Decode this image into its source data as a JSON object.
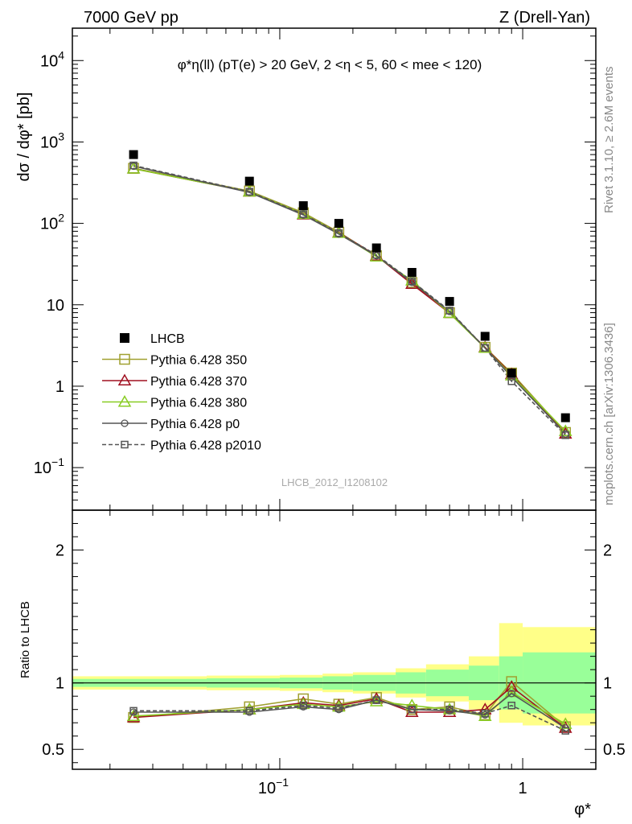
{
  "header": {
    "left": "7000 GeV pp",
    "right": "Z (Drell-Yan)"
  },
  "side_labels": {
    "rivet": "Rivet 3.1.10, ≥ 2.6M events",
    "mcplots": "mcplots.cern.ch [arXiv:1306.3436]"
  },
  "watermark": "LHCB_2012_I1208102",
  "colors": {
    "data": "#000000",
    "p350": "#a0a030",
    "p370": "#a01020",
    "p380": "#88cc22",
    "p0": "#555555",
    "p2010": "#555555",
    "band_inner": "#99ff99",
    "band_outer": "#ffff88"
  },
  "chart_data": [
    {
      "type": "scatter",
      "title": "φ*η(ll) (pT(e) > 20 GeV, 2 <η < 5, 60 < mee < 120)",
      "xlabel": "φ*",
      "ylabel": "dσ / dφ* [pb]",
      "xscale": "log",
      "yscale": "log",
      "xlim": [
        0.014,
        2.0
      ],
      "ylim": [
        0.03,
        25000
      ],
      "grid": false,
      "legend_position": "bottom-left",
      "y_tick_labels": [
        "10^-1",
        "1",
        "10",
        "10^2",
        "10^3",
        "10^4"
      ],
      "x": [
        0.025,
        0.075,
        0.125,
        0.175,
        0.25,
        0.35,
        0.5,
        0.7,
        0.9,
        1.5
      ],
      "series": [
        {
          "name": "LHCB",
          "style": "data",
          "values": [
            700,
            330,
            165,
            100,
            50,
            25,
            11,
            4.1,
            1.45,
            0.41
          ]
        },
        {
          "name": "Pythia 6.428 350",
          "style": "p350",
          "values": [
            475,
            250,
            135,
            78,
            40,
            18.8,
            8.0,
            3.0,
            1.45,
            0.27
          ]
        },
        {
          "name": "Pythia 6.428 370",
          "style": "p370",
          "values": [
            470,
            245,
            128,
            77,
            40,
            18.0,
            7.9,
            3.0,
            1.4,
            0.26
          ]
        },
        {
          "name": "Pythia 6.428 380",
          "style": "p380",
          "values": [
            470,
            245,
            130,
            76,
            39,
            19.8,
            7.9,
            2.95,
            1.35,
            0.28
          ]
        },
        {
          "name": "Pythia 6.428 p0",
          "style": "p0",
          "values": [
            505,
            240,
            127,
            74,
            40,
            18.9,
            8.3,
            2.95,
            1.3,
            0.26
          ]
        },
        {
          "name": "Pythia 6.428 p2010",
          "style": "p2010",
          "values": [
            515,
            245,
            130,
            76,
            41,
            19.5,
            8.5,
            2.95,
            1.15,
            0.25
          ]
        }
      ]
    },
    {
      "type": "line",
      "ylabel": "Ratio to LHCB",
      "xlabel": "φ*",
      "xscale": "log",
      "xlim": [
        0.014,
        2.0
      ],
      "ylim": [
        0.35,
        2.3
      ],
      "x_tick_labels": [
        "10^-1",
        "1"
      ],
      "y_tick_labels": [
        "0.5",
        "1",
        "2"
      ],
      "bands": {
        "x_edges": [
          0.014,
          0.05,
          0.1,
          0.15,
          0.2,
          0.3,
          0.4,
          0.6,
          0.8,
          1.0,
          2.0
        ],
        "inner": [
          0.03,
          0.035,
          0.04,
          0.05,
          0.06,
          0.08,
          0.1,
          0.13,
          0.2,
          0.23
        ],
        "outer": [
          0.05,
          0.055,
          0.06,
          0.07,
          0.08,
          0.11,
          0.14,
          0.2,
          0.3,
          0.32
        ],
        "outer_up": [
          0.05,
          0.055,
          0.06,
          0.07,
          0.08,
          0.11,
          0.14,
          0.2,
          0.45,
          0.42
        ]
      },
      "x": [
        0.025,
        0.075,
        0.125,
        0.175,
        0.25,
        0.35,
        0.5,
        0.7,
        0.9,
        1.5
      ],
      "series": [
        {
          "name": "Pythia 6.428 350",
          "style": "p350",
          "values": [
            0.74,
            0.82,
            0.88,
            0.84,
            0.89,
            0.8,
            0.82,
            0.76,
            1.01,
            0.67
          ]
        },
        {
          "name": "Pythia 6.428 370",
          "style": "p370",
          "values": [
            0.74,
            0.8,
            0.85,
            0.83,
            0.88,
            0.78,
            0.78,
            0.8,
            0.97,
            0.66
          ]
        },
        {
          "name": "Pythia 6.428 380",
          "style": "p380",
          "values": [
            0.75,
            0.8,
            0.84,
            0.82,
            0.86,
            0.83,
            0.8,
            0.75,
            0.93,
            0.69
          ]
        },
        {
          "name": "Pythia 6.428 p0",
          "style": "p0",
          "values": [
            0.78,
            0.78,
            0.82,
            0.8,
            0.87,
            0.8,
            0.79,
            0.76,
            0.92,
            0.66
          ]
        },
        {
          "name": "Pythia 6.428 p2010",
          "style": "p2010",
          "values": [
            0.79,
            0.79,
            0.83,
            0.81,
            0.87,
            0.8,
            0.8,
            0.77,
            0.83,
            0.64
          ]
        }
      ]
    }
  ]
}
